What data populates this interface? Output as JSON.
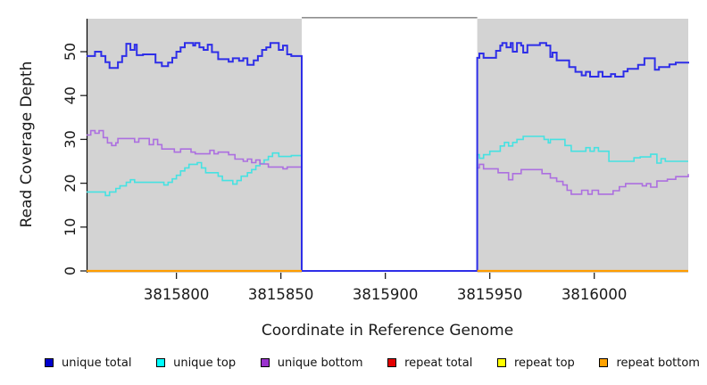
{
  "chart_data": {
    "type": "line",
    "subtype": "step",
    "title": "",
    "xlabel": "Coordinate in Reference Genome",
    "ylabel": "Read Coverage Depth",
    "xlim": [
      3815757,
      3816045
    ],
    "ylim": [
      0,
      57.5
    ],
    "x_ticks": [
      3815800,
      3815850,
      3815900,
      3815950,
      3816000
    ],
    "y_ticks": [
      0,
      10,
      20,
      30,
      40,
      50
    ],
    "grid": false,
    "panel_background": "#d3d3d3",
    "gap_border_color": "#8f8f8f",
    "coverage_gap": {
      "start": 3815860,
      "end": 3815944
    },
    "legend_position": "bottom",
    "series": [
      {
        "name": "unique total",
        "line_color": "#2e2ee8",
        "legend_color": "#0000cd",
        "line_width": 2,
        "segments": [
          [
            [
              3815757,
              49
            ],
            [
              3815761,
              50
            ],
            [
              3815764,
              49
            ],
            [
              3815766,
              47.6
            ],
            [
              3815768,
              46.3
            ],
            [
              3815772,
              47.6
            ],
            [
              3815774,
              49
            ],
            [
              3815776,
              51.8
            ],
            [
              3815778,
              50.4
            ],
            [
              3815780,
              51.6
            ],
            [
              3815781,
              49.2
            ],
            [
              3815784,
              49.4
            ],
            [
              3815790,
              47.5
            ],
            [
              3815793,
              46.7
            ],
            [
              3815796,
              47.5
            ],
            [
              3815798,
              48.6
            ],
            [
              3815800,
              50
            ],
            [
              3815802,
              51
            ],
            [
              3815804,
              52
            ],
            [
              3815808,
              51.4
            ],
            [
              3815809,
              52
            ],
            [
              3815811,
              51
            ],
            [
              3815813,
              50.4
            ],
            [
              3815815,
              51.6
            ],
            [
              3815817,
              49.9
            ],
            [
              3815820,
              48.3
            ],
            [
              3815825,
              47.7
            ],
            [
              3815827,
              48.5
            ],
            [
              3815830,
              47.9
            ],
            [
              3815832,
              48.5
            ],
            [
              3815834,
              47
            ],
            [
              3815837,
              48
            ],
            [
              3815839,
              49
            ],
            [
              3815841,
              50.4
            ],
            [
              3815843,
              51
            ],
            [
              3815845,
              52
            ],
            [
              3815849,
              50.4
            ],
            [
              3815851,
              51.4
            ],
            [
              3815853,
              49.4
            ],
            [
              3815855,
              49
            ],
            [
              3815860,
              0
            ],
            [
              3815944,
              48.6
            ],
            [
              3815945,
              49.6
            ],
            [
              3815947,
              48.6
            ],
            [
              3815953,
              50.2
            ],
            [
              3815955,
              51.4
            ],
            [
              3815956,
              52
            ],
            [
              3815958,
              51
            ],
            [
              3815960,
              52
            ],
            [
              3815961,
              50
            ],
            [
              3815963,
              52
            ],
            [
              3815965,
              51.4
            ],
            [
              3815966,
              49.8
            ],
            [
              3815968,
              51.5
            ],
            [
              3815974,
              52
            ],
            [
              3815977,
              51.4
            ],
            [
              3815979,
              48.8
            ],
            [
              3815980,
              49.8
            ],
            [
              3815982,
              48
            ],
            [
              3815988,
              46.5
            ],
            [
              3815991,
              45.4
            ],
            [
              3815994,
              44.6
            ],
            [
              3815996,
              45.4
            ],
            [
              3815998,
              44.3
            ],
            [
              3816002,
              45.4
            ],
            [
              3816004,
              44.3
            ],
            [
              3816008,
              44.9
            ],
            [
              3816010,
              44.3
            ],
            [
              3816014,
              45.5
            ],
            [
              3816016,
              46.1
            ],
            [
              3816021,
              47
            ],
            [
              3816024,
              48.5
            ],
            [
              3816029,
              45.9
            ],
            [
              3816031,
              46.5
            ],
            [
              3816036,
              47.1
            ],
            [
              3816039,
              47.5
            ],
            [
              3816045,
              47.7
            ]
          ]
        ]
      },
      {
        "name": "unique top",
        "line_color": "#45e2e2",
        "legend_color": "#00ffff",
        "line_width": 1.6,
        "segments": [
          [
            [
              3815757,
              18
            ],
            [
              3815766,
              17.2
            ],
            [
              3815768,
              18
            ],
            [
              3815771,
              18.8
            ],
            [
              3815773,
              19.4
            ],
            [
              3815776,
              20.2
            ],
            [
              3815778,
              20.8
            ],
            [
              3815780,
              20.2
            ],
            [
              3815794,
              19.6
            ],
            [
              3815796,
              20.2
            ],
            [
              3815798,
              21
            ],
            [
              3815800,
              21.8
            ],
            [
              3815802,
              22.8
            ],
            [
              3815804,
              23.5
            ],
            [
              3815806,
              24.3
            ],
            [
              3815810,
              24.7
            ],
            [
              3815812,
              23.5
            ],
            [
              3815814,
              22.4
            ],
            [
              3815820,
              21.6
            ],
            [
              3815822,
              20.6
            ],
            [
              3815827,
              19.8
            ],
            [
              3815829,
              20.6
            ],
            [
              3815831,
              21.6
            ],
            [
              3815834,
              22.4
            ],
            [
              3815836,
              23.1
            ],
            [
              3815838,
              24
            ],
            [
              3815840,
              24.5
            ],
            [
              3815842,
              25.3
            ],
            [
              3815844,
              26.1
            ],
            [
              3815846,
              26.9
            ],
            [
              3815849,
              26.1
            ],
            [
              3815855,
              26.3
            ],
            [
              3815860,
              0
            ],
            [
              3815944,
              26.5
            ],
            [
              3815945,
              25.7
            ],
            [
              3815947,
              26.5
            ],
            [
              3815950,
              27.3
            ],
            [
              3815955,
              28.5
            ],
            [
              3815957,
              29.3
            ],
            [
              3815959,
              28.5
            ],
            [
              3815961,
              29.3
            ],
            [
              3815963,
              30
            ],
            [
              3815966,
              30.7
            ],
            [
              3815976,
              30
            ],
            [
              3815978,
              29.2
            ],
            [
              3815979,
              30
            ],
            [
              3815986,
              28.6
            ],
            [
              3815989,
              27.3
            ],
            [
              3815996,
              28.1
            ],
            [
              3815998,
              27.3
            ],
            [
              3816000,
              28.1
            ],
            [
              3816002,
              27.3
            ],
            [
              3816007,
              25
            ],
            [
              3816019,
              25.8
            ],
            [
              3816022,
              26
            ],
            [
              3816027,
              26.6
            ],
            [
              3816030,
              24.6
            ],
            [
              3816032,
              25.6
            ],
            [
              3816034,
              25
            ],
            [
              3816045,
              25
            ]
          ]
        ]
      },
      {
        "name": "unique bottom",
        "line_color": "#ac6fe0",
        "legend_color": "#9a32cd",
        "line_width": 1.6,
        "segments": [
          [
            [
              3815757,
              31
            ],
            [
              3815759,
              32
            ],
            [
              3815761,
              31.4
            ],
            [
              3815763,
              32
            ],
            [
              3815765,
              30.4
            ],
            [
              3815767,
              29.2
            ],
            [
              3815769,
              28.6
            ],
            [
              3815771,
              29.2
            ],
            [
              3815772,
              30.2
            ],
            [
              3815780,
              29.4
            ],
            [
              3815782,
              30.2
            ],
            [
              3815787,
              28.8
            ],
            [
              3815789,
              30
            ],
            [
              3815791,
              28.8
            ],
            [
              3815793,
              27.8
            ],
            [
              3815799,
              27.1
            ],
            [
              3815802,
              27.8
            ],
            [
              3815807,
              27.1
            ],
            [
              3815809,
              26.7
            ],
            [
              3815816,
              27.5
            ],
            [
              3815818,
              26.7
            ],
            [
              3815820,
              27.1
            ],
            [
              3815825,
              26.5
            ],
            [
              3815828,
              25.5
            ],
            [
              3815832,
              25
            ],
            [
              3815834,
              25.5
            ],
            [
              3815836,
              24.7
            ],
            [
              3815838,
              25.3
            ],
            [
              3815840,
              24.4
            ],
            [
              3815844,
              23.7
            ],
            [
              3815851,
              23.3
            ],
            [
              3815853,
              23.7
            ],
            [
              3815860,
              0
            ],
            [
              3815944,
              23.5
            ],
            [
              3815945,
              24.3
            ],
            [
              3815947,
              23.3
            ],
            [
              3815954,
              22.4
            ],
            [
              3815959,
              20.8
            ],
            [
              3815961,
              22.2
            ],
            [
              3815965,
              23.1
            ],
            [
              3815975,
              22.2
            ],
            [
              3815979,
              21.2
            ],
            [
              3815982,
              20.4
            ],
            [
              3815985,
              19.6
            ],
            [
              3815987,
              18.4
            ],
            [
              3815989,
              17.5
            ],
            [
              3815994,
              18.4
            ],
            [
              3815997,
              17.5
            ],
            [
              3815999,
              18.4
            ],
            [
              3816002,
              17.5
            ],
            [
              3816009,
              18.3
            ],
            [
              3816012,
              19.2
            ],
            [
              3816015,
              19.9
            ],
            [
              3816023,
              19.4
            ],
            [
              3816025,
              19.9
            ],
            [
              3816027,
              19.1
            ],
            [
              3816030,
              20.5
            ],
            [
              3816035,
              20.9
            ],
            [
              3816039,
              21.5
            ],
            [
              3816045,
              22.1
            ]
          ]
        ]
      },
      {
        "name": "repeat total",
        "line_color": "#dd0000",
        "legend_color": "#e30000",
        "line_width": 1.6,
        "segments": [
          [
            [
              3815757,
              0
            ],
            [
              3815860,
              0
            ]
          ],
          [
            [
              3815944,
              0
            ],
            [
              3816045,
              0
            ]
          ]
        ]
      },
      {
        "name": "repeat top",
        "line_color": "#ffff00",
        "legend_color": "#ffff00",
        "line_width": 1.6,
        "segments": [
          [
            [
              3815757,
              0
            ],
            [
              3815860,
              0
            ]
          ],
          [
            [
              3815944,
              0
            ],
            [
              3816045,
              0
            ]
          ]
        ]
      },
      {
        "name": "repeat bottom",
        "line_color": "#ff9d00",
        "legend_color": "#ffa200",
        "line_width": 2.2,
        "segments": [
          [
            [
              3815757,
              0
            ],
            [
              3815860,
              0
            ]
          ],
          [
            [
              3815944,
              0
            ],
            [
              3816045,
              0
            ]
          ]
        ]
      }
    ]
  }
}
